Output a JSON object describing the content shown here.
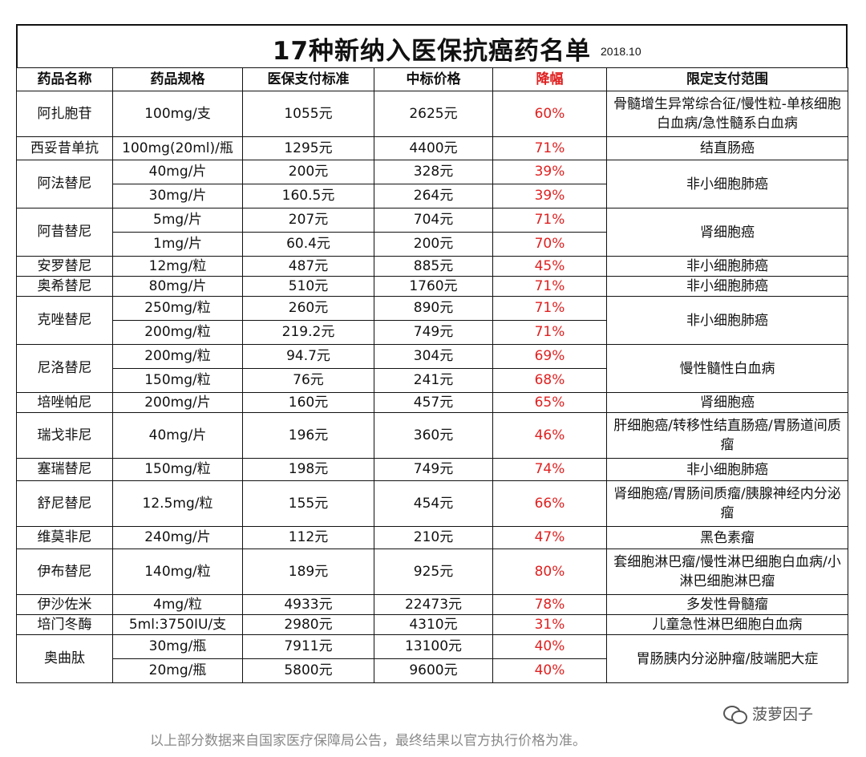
{
  "title": "17种新纳入医保抗癌药名单",
  "date": "2018.10",
  "headers": [
    "药品名称",
    "药品规格",
    "医保支付标准",
    "中标价格",
    "降幅",
    "限定支付范围"
  ],
  "drugs": [
    {
      "name": "阿扎胞苷",
      "scope": "骨髓增生异常综合征/慢性粒-单核细胞白血病/急性髓系白血病",
      "rows": [
        {
          "spec": "100mg/支",
          "std": "1055元",
          "bid": "2625元",
          "drop": "60%"
        }
      ]
    },
    {
      "name": "西妥昔单抗",
      "scope": "结直肠癌",
      "rows": [
        {
          "spec": "100mg(20ml)/瓶",
          "std": "1295元",
          "bid": "4400元",
          "drop": "71%"
        }
      ]
    },
    {
      "name": "阿法替尼",
      "scope": "非小细胞肺癌",
      "rows": [
        {
          "spec": "40mg/片",
          "std": "200元",
          "bid": "328元",
          "drop": "39%"
        },
        {
          "spec": "30mg/片",
          "std": "160.5元",
          "bid": "264元",
          "drop": "39%"
        }
      ]
    },
    {
      "name": "阿昔替尼",
      "scope": "肾细胞癌",
      "rows": [
        {
          "spec": "5mg/片",
          "std": "207元",
          "bid": "704元",
          "drop": "71%"
        },
        {
          "spec": "1mg/片",
          "std": "60.4元",
          "bid": "200元",
          "drop": "70%"
        }
      ]
    },
    {
      "name": "安罗替尼",
      "scope": "非小细胞肺癌",
      "rows": [
        {
          "spec": "12mg/粒",
          "std": "487元",
          "bid": "885元",
          "drop": "45%"
        }
      ]
    },
    {
      "name": "奥希替尼",
      "scope": "非小细胞肺癌",
      "rows": [
        {
          "spec": "80mg/片",
          "std": "510元",
          "bid": "1760元",
          "drop": "71%"
        }
      ]
    },
    {
      "name": "克唑替尼",
      "scope": "非小细胞肺癌",
      "rows": [
        {
          "spec": "250mg/粒",
          "std": "260元",
          "bid": "890元",
          "drop": "71%"
        },
        {
          "spec": "200mg/粒",
          "std": "219.2元",
          "bid": "749元",
          "drop": "71%"
        }
      ]
    },
    {
      "name": "尼洛替尼",
      "scope": "慢性髓性白血病",
      "rows": [
        {
          "spec": "200mg/粒",
          "std": "94.7元",
          "bid": "304元",
          "drop": "69%"
        },
        {
          "spec": "150mg/粒",
          "std": "76元",
          "bid": "241元",
          "drop": "68%"
        }
      ]
    },
    {
      "name": "培唑帕尼",
      "scope": "肾细胞癌",
      "rows": [
        {
          "spec": "200mg/片",
          "std": "160元",
          "bid": "457元",
          "drop": "65%"
        }
      ]
    },
    {
      "name": "瑞戈非尼",
      "scope": "肝细胞癌/转移性结直肠癌/胃肠道间质瘤",
      "rows": [
        {
          "spec": "40mg/片",
          "std": "196元",
          "bid": "360元",
          "drop": "46%"
        }
      ]
    },
    {
      "name": "塞瑞替尼",
      "scope": "非小细胞肺癌",
      "rows": [
        {
          "spec": "150mg/粒",
          "std": "198元",
          "bid": "749元",
          "drop": "74%"
        }
      ]
    },
    {
      "name": "舒尼替尼",
      "scope": "肾细胞癌/胃肠间质瘤/胰腺神经内分泌瘤",
      "rows": [
        {
          "spec": "12.5mg/粒",
          "std": "155元",
          "bid": "454元",
          "drop": "66%"
        }
      ]
    },
    {
      "name": "维莫非尼",
      "scope": "黑色素瘤",
      "rows": [
        {
          "spec": "240mg/片",
          "std": "112元",
          "bid": "210元",
          "drop": "47%"
        }
      ]
    },
    {
      "name": "伊布替尼",
      "scope": "套细胞淋巴瘤/慢性淋巴细胞白血病/小淋巴细胞淋巴瘤",
      "rows": [
        {
          "spec": "140mg/粒",
          "std": "189元",
          "bid": "925元",
          "drop": "80%"
        }
      ]
    },
    {
      "name": "伊沙佐米",
      "scope": "多发性骨髓瘤",
      "rows": [
        {
          "spec": "4mg/粒",
          "std": "4933元",
          "bid": "22473元",
          "drop": "78%"
        }
      ]
    },
    {
      "name": "培门冬酶",
      "scope": "儿童急性淋巴细胞白血病",
      "rows": [
        {
          "spec": "5ml:3750IU/支",
          "std": "2980元",
          "bid": "4310元",
          "drop": "31%"
        }
      ]
    },
    {
      "name": "奥曲肽",
      "scope": "胃肠胰内分泌肿瘤/肢端肥大症",
      "rows": [
        {
          "spec": "30mg/瓶",
          "std": "7911元",
          "bid": "13100元",
          "drop": "40%"
        },
        {
          "spec": "20mg/瓶",
          "std": "5800元",
          "bid": "9600元",
          "drop": "40%"
        }
      ]
    }
  ],
  "footer_note": "以上部分数据来自国家医疗保障局公告，最终结果以官方执行价格为准。",
  "watermark": "菠萝因子",
  "watermark_icon": "wechat-icon"
}
